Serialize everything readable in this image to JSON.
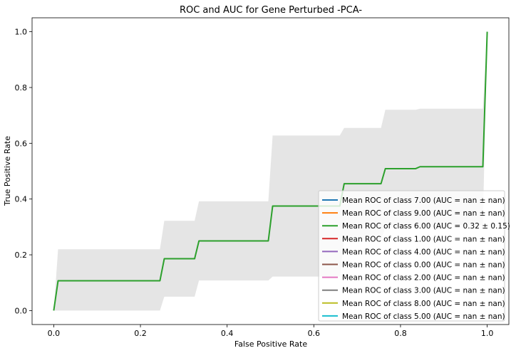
{
  "chart_data": {
    "type": "line",
    "title": "ROC and AUC for Gene Perturbed -PCA-",
    "xlabel": "False Positive Rate",
    "ylabel": "True Positive Rate",
    "xlim": [
      -0.05,
      1.05
    ],
    "ylim": [
      -0.05,
      1.05
    ],
    "xticks": [
      0.0,
      0.2,
      0.4,
      0.6,
      0.8,
      1.0
    ],
    "xtick_labels": [
      "0.0",
      "0.2",
      "0.4",
      "0.6",
      "0.8",
      "1.0"
    ],
    "yticks": [
      0.0,
      0.2,
      0.4,
      0.6,
      0.8,
      1.0
    ],
    "ytick_labels": [
      "0.0",
      "0.2",
      "0.4",
      "0.6",
      "0.8",
      "1.0"
    ],
    "grid": false,
    "legend_position": "lower right",
    "series": [
      {
        "name": "Mean ROC of class 7.00 (AUC = nan ± nan)",
        "color": "#1f77b4",
        "x": [],
        "y": []
      },
      {
        "name": "Mean ROC of class 9.00 (AUC = nan ± nan)",
        "color": "#ff7f0e",
        "x": [],
        "y": []
      },
      {
        "name": "Mean ROC of class 6.00 (AUC = 0.32 ± 0.15)",
        "color": "#2ca02c",
        "x": [
          0.0,
          0.01,
          0.245,
          0.255,
          0.325,
          0.335,
          0.495,
          0.505,
          0.66,
          0.67,
          0.755,
          0.765,
          0.835,
          0.845,
          0.99,
          1.0
        ],
        "y": [
          0.0,
          0.107,
          0.107,
          0.186,
          0.186,
          0.25,
          0.25,
          0.375,
          0.375,
          0.455,
          0.455,
          0.509,
          0.509,
          0.516,
          0.516,
          1.0
        ]
      },
      {
        "name": "Mean ROC of class 1.00 (AUC = nan ± nan)",
        "color": "#d62728",
        "x": [],
        "y": []
      },
      {
        "name": "Mean ROC of class 4.00 (AUC = nan ± nan)",
        "color": "#9467bd",
        "x": [],
        "y": []
      },
      {
        "name": "Mean ROC of class 0.00 (AUC = nan ± nan)",
        "color": "#8c564b",
        "x": [],
        "y": []
      },
      {
        "name": "Mean ROC of class 2.00 (AUC = nan ± nan)",
        "color": "#e377c2",
        "x": [],
        "y": []
      },
      {
        "name": "Mean ROC of class 3.00 (AUC = nan ± nan)",
        "color": "#7f7f7f",
        "x": [],
        "y": []
      },
      {
        "name": "Mean ROC of class 8.00 (AUC = nan ± nan)",
        "color": "#bcbd22",
        "x": [],
        "y": []
      },
      {
        "name": "Mean ROC of class 5.00 (AUC = nan ± nan)",
        "color": "#17becf",
        "x": [],
        "y": []
      }
    ],
    "band": {
      "color": "#d3d3d3",
      "x": [
        0.0,
        0.01,
        0.245,
        0.255,
        0.325,
        0.335,
        0.495,
        0.505,
        0.66,
        0.67,
        0.755,
        0.765,
        0.835,
        0.845,
        0.99,
        1.0
      ],
      "upper": [
        0.0,
        0.22,
        0.22,
        0.322,
        0.322,
        0.392,
        0.392,
        0.628,
        0.628,
        0.655,
        0.655,
        0.72,
        0.72,
        0.724,
        0.724,
        1.0
      ],
      "lower": [
        0.0,
        0.0,
        0.0,
        0.05,
        0.05,
        0.108,
        0.108,
        0.122,
        0.122,
        0.255,
        0.255,
        0.298,
        0.298,
        0.308,
        0.308,
        1.0
      ]
    }
  }
}
